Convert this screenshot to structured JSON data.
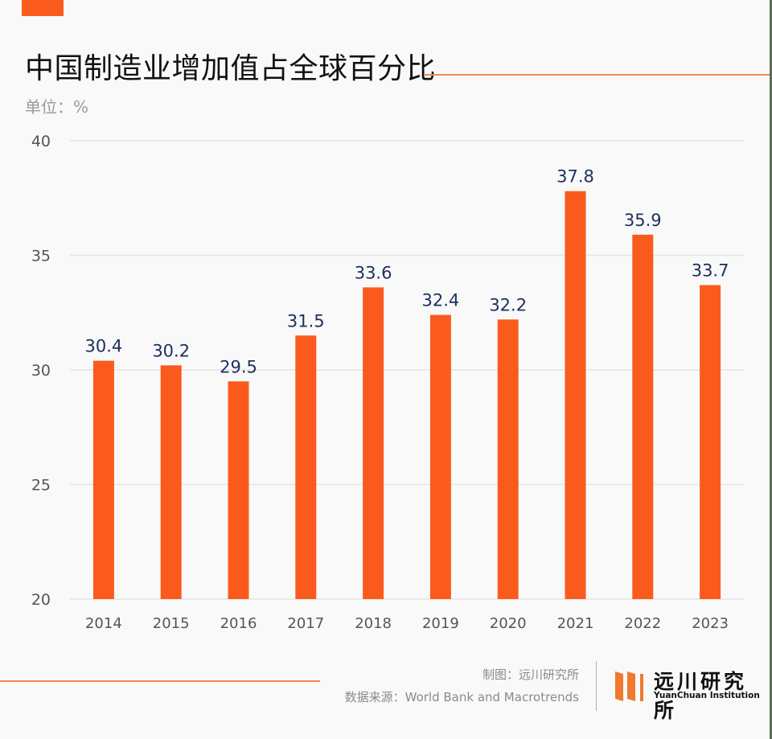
{
  "header": {
    "title": "中国制造业增加值占全球百分比",
    "unit_label": "单位：%"
  },
  "colors": {
    "bar": "#fa5b1c",
    "accent_rule": "#f08a55",
    "data_label": "#1f3060",
    "tick_label": "#555555",
    "grid": "#e4e4e4"
  },
  "chart_data": {
    "type": "bar",
    "title": "中国制造业增加值占全球百分比",
    "subtitle": "单位：%",
    "xlabel": "",
    "ylabel": "",
    "categories": [
      "2014",
      "2015",
      "2016",
      "2017",
      "2018",
      "2019",
      "2020",
      "2021",
      "2022",
      "2023"
    ],
    "values": [
      30.4,
      30.2,
      29.5,
      31.5,
      33.6,
      32.4,
      32.2,
      37.8,
      35.9,
      33.7
    ],
    "data_labels": [
      "30.4",
      "30.2",
      "29.5",
      "31.5",
      "33.6",
      "32.4",
      "32.2",
      "37.8",
      "35.9",
      "33.7"
    ],
    "ylim": [
      20,
      40
    ],
    "yticks": [
      20,
      25,
      30,
      35,
      40
    ],
    "ytick_labels": [
      "20",
      "25",
      "30",
      "35",
      "40"
    ],
    "grid": true,
    "legend": "none"
  },
  "footer": {
    "credit": "制图：远川研究所",
    "source": "数据来源：World Bank and Macrotrends",
    "logo_cn": "远川研究所",
    "logo_en": "YuanChuan Institution"
  }
}
